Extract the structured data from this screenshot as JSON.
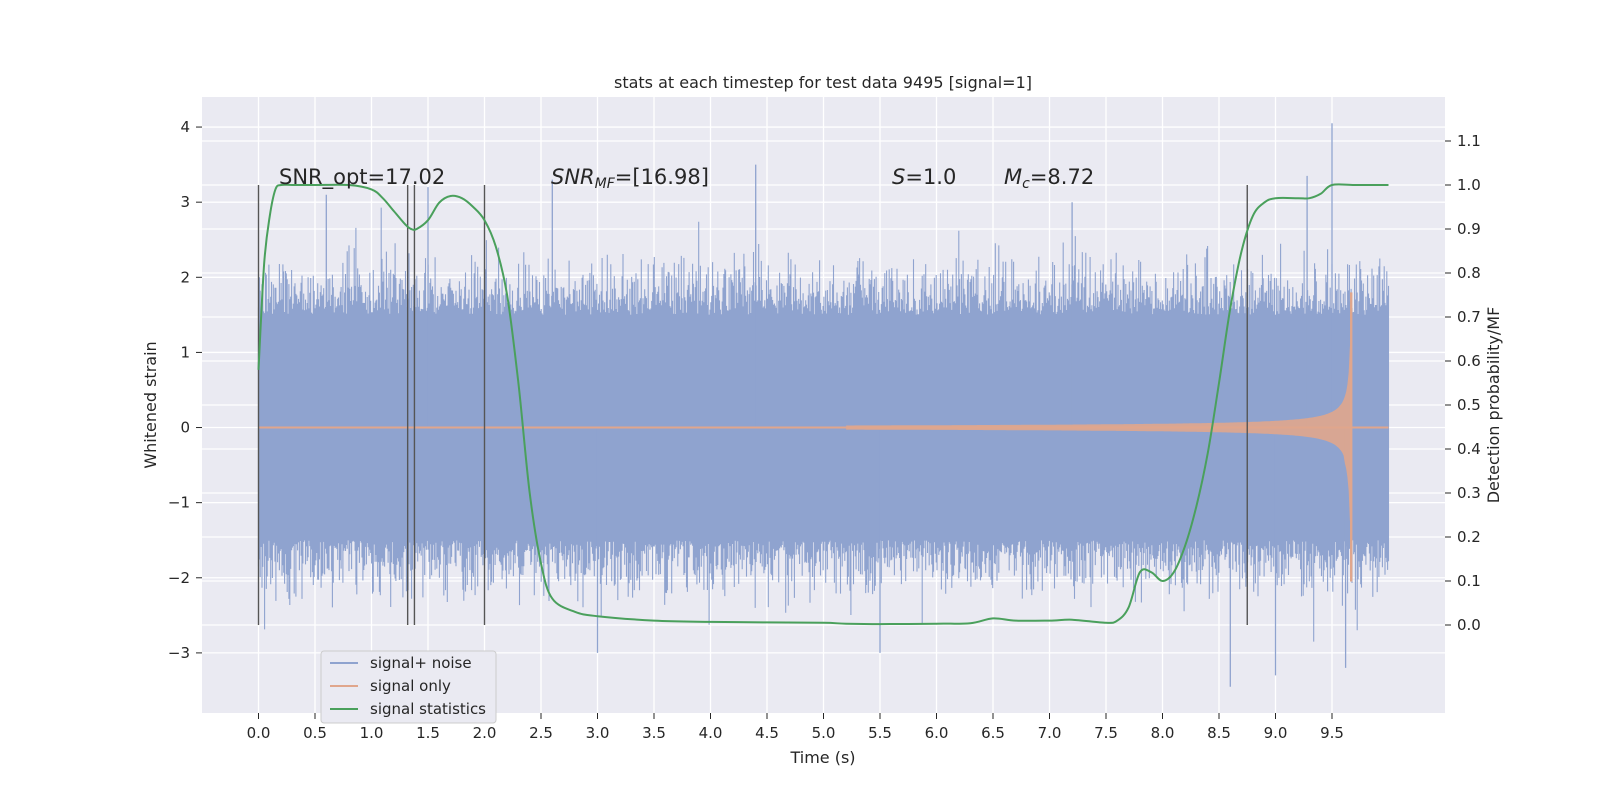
{
  "chart_data": {
    "type": "line",
    "title": "stats at each timestep for test data 9495 [signal=1]",
    "xlabel": "Time (s)",
    "ylabel_left": "Whitened strain",
    "ylabel_right": "Detection probability/MF",
    "xlim": [
      -0.5,
      10.5
    ],
    "ylim_left": [
      -3.8,
      4.4
    ],
    "ylim_right": [
      -0.2,
      1.2
    ],
    "xticks": [
      "0.0",
      "0.5",
      "1.0",
      "1.5",
      "2.0",
      "2.5",
      "3.0",
      "3.5",
      "4.0",
      "4.5",
      "5.0",
      "5.5",
      "6.0",
      "6.5",
      "7.0",
      "7.5",
      "8.0",
      "8.5",
      "9.0",
      "9.5"
    ],
    "yticks_left": [
      "4",
      "3",
      "2",
      "1",
      "0",
      "−1",
      "−2",
      "−3"
    ],
    "yticks_right": [
      "1.1",
      "1.0",
      "0.9",
      "0.8",
      "0.7",
      "0.6",
      "0.5",
      "0.4",
      "0.3",
      "0.2",
      "0.1",
      "0.0"
    ],
    "grid": true,
    "legend_position": "lower-left",
    "annotations": {
      "snr_opt": "SNR_opt=17.02",
      "snr_mf_base": "SNR",
      "snr_mf_sub": "MF",
      "snr_mf_value": "=[16.98]",
      "s_symbol": "S",
      "s_value": "=1.0",
      "mc_base": "M",
      "mc_sub": "c",
      "mc_value": "=8.72"
    },
    "vlines_x": [
      0.0,
      1.32,
      1.38,
      2.0,
      8.75
    ],
    "vline_range_right": [
      0.0,
      1.0
    ],
    "series": [
      {
        "name": "signal+ noise",
        "color": "#8fa3cf",
        "axis": "left",
        "x_range": [
          0.0,
          10.0
        ],
        "envelope_y": [
          -1.5,
          1.5
        ],
        "peak_y": [
          4.05,
          -3.45
        ]
      },
      {
        "name": "signal only",
        "color": "#e0a68c",
        "axis": "left",
        "x_range": [
          0.0,
          10.0
        ],
        "chirp_start_x": 5.2,
        "merger_x": 9.67,
        "peak_amplitude": 1.8
      },
      {
        "name": "signal statistics",
        "color": "#4aa05c",
        "axis": "right",
        "x": [
          0.0,
          0.05,
          0.1,
          0.15,
          0.2,
          0.3,
          0.5,
          0.8,
          1.0,
          1.1,
          1.2,
          1.3,
          1.35,
          1.4,
          1.5,
          1.6,
          1.7,
          1.8,
          1.9,
          2.0,
          2.1,
          2.2,
          2.3,
          2.4,
          2.5,
          2.6,
          2.8,
          3.0,
          3.5,
          4.0,
          4.5,
          5.0,
          5.2,
          5.5,
          6.0,
          6.3,
          6.5,
          6.7,
          7.0,
          7.2,
          7.5,
          7.6,
          7.7,
          7.8,
          7.9,
          8.0,
          8.1,
          8.2,
          8.3,
          8.4,
          8.5,
          8.6,
          8.7,
          8.8,
          8.9,
          9.0,
          9.2,
          9.3,
          9.4,
          9.5,
          9.7,
          10.0
        ],
        "y": [
          0.58,
          0.82,
          0.93,
          0.99,
          1.0,
          1.0,
          1.0,
          1.0,
          0.99,
          0.97,
          0.94,
          0.91,
          0.9,
          0.9,
          0.92,
          0.96,
          0.975,
          0.97,
          0.95,
          0.92,
          0.86,
          0.75,
          0.55,
          0.3,
          0.14,
          0.06,
          0.03,
          0.02,
          0.01,
          0.007,
          0.006,
          0.005,
          0.003,
          0.002,
          0.003,
          0.004,
          0.015,
          0.01,
          0.01,
          0.012,
          0.005,
          0.01,
          0.04,
          0.12,
          0.12,
          0.1,
          0.12,
          0.18,
          0.27,
          0.39,
          0.55,
          0.72,
          0.85,
          0.93,
          0.96,
          0.97,
          0.97,
          0.97,
          0.98,
          1.0,
          1.0,
          1.0
        ]
      }
    ]
  }
}
